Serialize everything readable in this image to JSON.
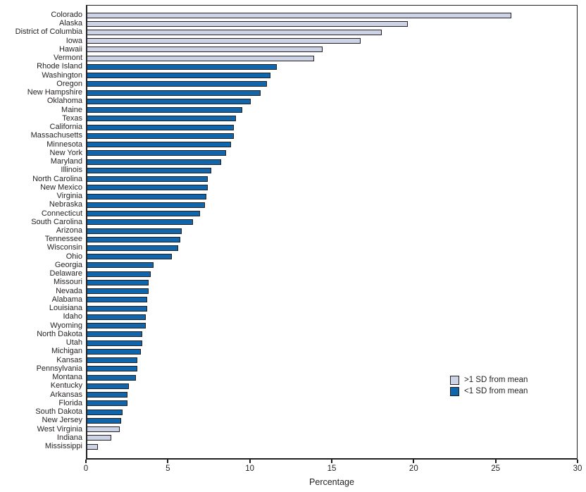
{
  "chart_data": {
    "type": "bar",
    "orientation": "horizontal",
    "title": "",
    "xlabel": "Percentage",
    "xlim": [
      0,
      30
    ],
    "xticks": [
      0,
      5,
      10,
      15,
      20,
      25,
      30
    ],
    "grid": false,
    "legend_position": "inside-right-bottom",
    "colors": {
      "outline": "#231f20",
      "gt1sd_fill": "#cdd3e6",
      "lt1sd_fill": "#1066ac",
      "text": "#231f20",
      "background": "#ffffff"
    },
    "legend": [
      {
        "key": "gt1sd",
        "label": ">1 SD from mean",
        "color": "#cdd3e6"
      },
      {
        "key": "lt1sd",
        "label": "<1 SD from mean",
        "color": "#1066ac"
      }
    ],
    "states": [
      {
        "name": "Colorado",
        "value": 25.9,
        "group": "gt1sd"
      },
      {
        "name": "Alaska",
        "value": 19.6,
        "group": "gt1sd"
      },
      {
        "name": "District of Columbia",
        "value": 18.0,
        "group": "gt1sd"
      },
      {
        "name": "Iowa",
        "value": 16.7,
        "group": "gt1sd"
      },
      {
        "name": "Hawaii",
        "value": 14.4,
        "group": "gt1sd"
      },
      {
        "name": "Vermont",
        "value": 13.9,
        "group": "gt1sd"
      },
      {
        "name": "Rhode Island",
        "value": 11.6,
        "group": "lt1sd"
      },
      {
        "name": "Washington",
        "value": 11.2,
        "group": "lt1sd"
      },
      {
        "name": "Oregon",
        "value": 11.0,
        "group": "lt1sd"
      },
      {
        "name": "New Hampshire",
        "value": 10.6,
        "group": "lt1sd"
      },
      {
        "name": "Oklahoma",
        "value": 10.0,
        "group": "lt1sd"
      },
      {
        "name": "Maine",
        "value": 9.5,
        "group": "lt1sd"
      },
      {
        "name": "Texas",
        "value": 9.1,
        "group": "lt1sd"
      },
      {
        "name": "California",
        "value": 9.0,
        "group": "lt1sd"
      },
      {
        "name": "Massachusetts",
        "value": 9.0,
        "group": "lt1sd"
      },
      {
        "name": "Minnesota",
        "value": 8.8,
        "group": "lt1sd"
      },
      {
        "name": "New York",
        "value": 8.5,
        "group": "lt1sd"
      },
      {
        "name": "Maryland",
        "value": 8.2,
        "group": "lt1sd"
      },
      {
        "name": "Illinois",
        "value": 7.6,
        "group": "lt1sd"
      },
      {
        "name": "North Carolina",
        "value": 7.4,
        "group": "lt1sd"
      },
      {
        "name": "New Mexico",
        "value": 7.4,
        "group": "lt1sd"
      },
      {
        "name": "Virginia",
        "value": 7.3,
        "group": "lt1sd"
      },
      {
        "name": "Nebraska",
        "value": 7.2,
        "group": "lt1sd"
      },
      {
        "name": "Connecticut",
        "value": 6.9,
        "group": "lt1sd"
      },
      {
        "name": "South Carolina",
        "value": 6.5,
        "group": "lt1sd"
      },
      {
        "name": "Arizona",
        "value": 5.8,
        "group": "lt1sd"
      },
      {
        "name": "Tennessee",
        "value": 5.7,
        "group": "lt1sd"
      },
      {
        "name": "Wisconsin",
        "value": 5.6,
        "group": "lt1sd"
      },
      {
        "name": "Ohio",
        "value": 5.2,
        "group": "lt1sd"
      },
      {
        "name": "Georgia",
        "value": 4.1,
        "group": "lt1sd"
      },
      {
        "name": "Delaware",
        "value": 3.9,
        "group": "lt1sd"
      },
      {
        "name": "Missouri",
        "value": 3.8,
        "group": "lt1sd"
      },
      {
        "name": "Nevada",
        "value": 3.8,
        "group": "lt1sd"
      },
      {
        "name": "Alabama",
        "value": 3.7,
        "group": "lt1sd"
      },
      {
        "name": "Louisiana",
        "value": 3.7,
        "group": "lt1sd"
      },
      {
        "name": "Idaho",
        "value": 3.6,
        "group": "lt1sd"
      },
      {
        "name": "Wyoming",
        "value": 3.6,
        "group": "lt1sd"
      },
      {
        "name": "North Dakota",
        "value": 3.4,
        "group": "lt1sd"
      },
      {
        "name": "Utah",
        "value": 3.4,
        "group": "lt1sd"
      },
      {
        "name": "Michigan",
        "value": 3.3,
        "group": "lt1sd"
      },
      {
        "name": "Kansas",
        "value": 3.1,
        "group": "lt1sd"
      },
      {
        "name": "Pennsylvania",
        "value": 3.1,
        "group": "lt1sd"
      },
      {
        "name": "Montana",
        "value": 3.0,
        "group": "lt1sd"
      },
      {
        "name": "Kentucky",
        "value": 2.6,
        "group": "lt1sd"
      },
      {
        "name": "Arkansas",
        "value": 2.5,
        "group": "lt1sd"
      },
      {
        "name": "Florida",
        "value": 2.5,
        "group": "lt1sd"
      },
      {
        "name": "South Dakota",
        "value": 2.2,
        "group": "lt1sd"
      },
      {
        "name": "New Jersey",
        "value": 2.1,
        "group": "lt1sd"
      },
      {
        "name": "West Virginia",
        "value": 2.0,
        "group": "gt1sd"
      },
      {
        "name": "Indiana",
        "value": 1.5,
        "group": "gt1sd"
      },
      {
        "name": "Mississippi",
        "value": 0.7,
        "group": "gt1sd"
      }
    ]
  }
}
